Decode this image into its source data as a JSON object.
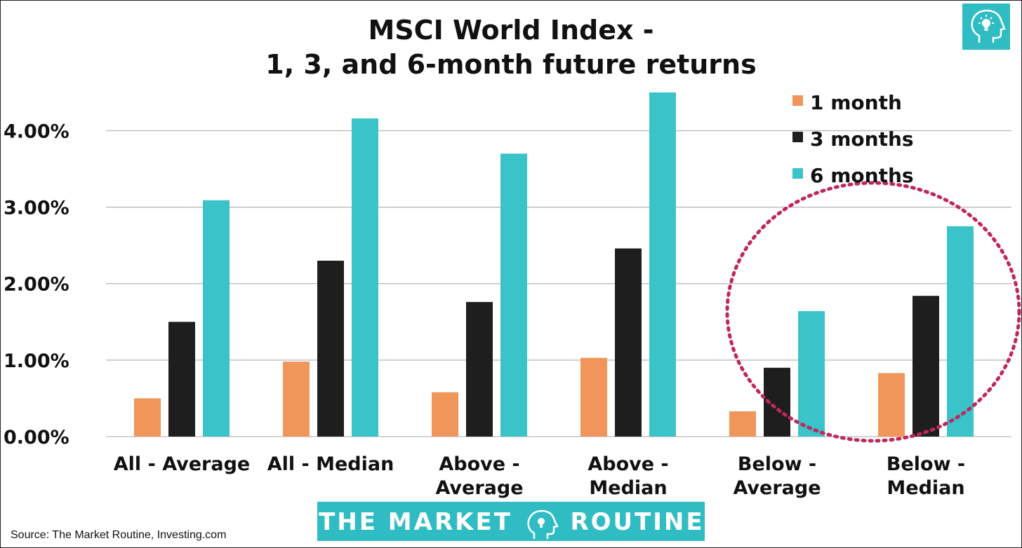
{
  "chart_data": {
    "type": "bar",
    "title_lines": [
      "MSCI World Index -",
      "1, 3, and 6-month future returns"
    ],
    "categories": [
      [
        "All - Average"
      ],
      [
        "All - Median"
      ],
      [
        "Above -",
        "Average"
      ],
      [
        "Above -",
        "Median"
      ],
      [
        "Below -",
        "Average"
      ],
      [
        "Below -",
        "Median"
      ]
    ],
    "series": [
      {
        "name": "1 month",
        "color": "#F0965A",
        "values": [
          0.5,
          0.98,
          0.58,
          1.03,
          0.33,
          0.83
        ]
      },
      {
        "name": "3 months",
        "color": "#1E1E1E",
        "values": [
          1.5,
          2.3,
          1.76,
          2.46,
          0.9,
          1.84
        ]
      },
      {
        "name": "6 months",
        "color": "#3AC3C8",
        "values": [
          3.09,
          4.16,
          3.7,
          4.5,
          1.64,
          2.75
        ]
      }
    ],
    "yticks": [
      {
        "value": 0,
        "label": "0.00%"
      },
      {
        "value": 1,
        "label": "1.00%"
      },
      {
        "value": 2,
        "label": "2.00%"
      },
      {
        "value": 3,
        "label": "3.00%"
      },
      {
        "value": 4,
        "label": "4.00%"
      }
    ],
    "ylim": [
      0,
      4.6
    ],
    "grid": true,
    "legend_position": "top-right",
    "highlight_color": "#C0275E"
  },
  "footer": {
    "source": "Source: The Market Routine, Investing.com",
    "banner_left": "THE MARKET",
    "banner_right": "ROUTINE",
    "brand_color": "#2FBCC2"
  }
}
